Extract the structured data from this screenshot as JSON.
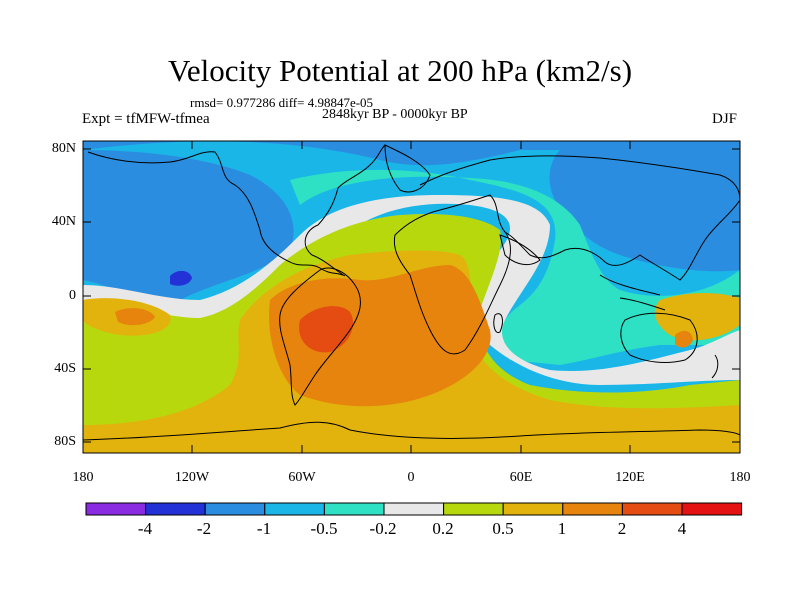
{
  "title": "Velocity Potential at 200 hPa (km2/s)",
  "stats_line": "rmsd= 0.977286 diff= 4.98847e-05",
  "period_line": "2848kyr BP - 0000kyr BP",
  "experiment_line": "Expt = tfMFW-tfmea",
  "season": "DJF",
  "lat_labels": [
    "80N",
    "40N",
    "0",
    "40S",
    "80S"
  ],
  "lon_labels": [
    "180",
    "120W",
    "60W",
    "0",
    "60E",
    "120E",
    "180"
  ],
  "colorbar": {
    "labels": [
      "-4",
      "-2",
      "-1",
      "-0.5",
      "-0.2",
      "0.2",
      "0.5",
      "1",
      "2",
      "4"
    ],
    "colors": [
      "#8a2be2",
      "#2332d6",
      "#2a8de0",
      "#1ab6e8",
      "#2ee0c4",
      "#e8e8e8",
      "#b8d80e",
      "#e2b30c",
      "#e6840e",
      "#e44c12",
      "#e41212"
    ]
  },
  "field_colors": {
    "ocean_base": "#1ab6e8",
    "strong_negative": "#2a8de0",
    "min_core": "#2332d6",
    "weak_negative": "#2ee0c4",
    "near_zero": "#e8e8e8",
    "weak_positive": "#b8d80e",
    "moderate_positive": "#e2b30c",
    "strong_positive": "#e6840e",
    "max_core": "#e44c12"
  }
}
